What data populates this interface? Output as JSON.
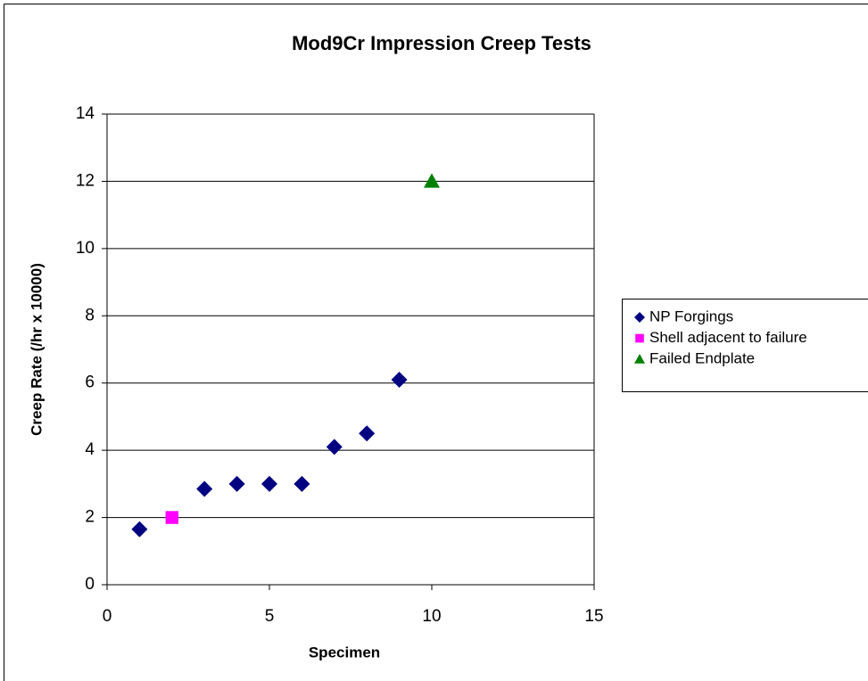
{
  "chart_data": {
    "type": "scatter",
    "title": "Mod9Cr Impression Creep Tests",
    "xlabel": "Specimen",
    "ylabel": "Creep Rate (/hr x 10000)",
    "xlim": [
      0,
      15
    ],
    "xticks": [
      0,
      5,
      10,
      15
    ],
    "ylim": [
      0,
      14
    ],
    "yticks": [
      0,
      2,
      4,
      6,
      8,
      10,
      12,
      14
    ],
    "grid": true,
    "legend": "right",
    "series": [
      {
        "name": "NP Forgings",
        "color": "#000080",
        "marker": "diamond",
        "x": [
          1,
          3,
          4,
          5,
          6,
          7,
          8,
          9
        ],
        "values": [
          1.65,
          2.85,
          3,
          3,
          3,
          4.1,
          4.5,
          6.1
        ]
      },
      {
        "name": "Shell adjacent to failure",
        "color": "#ff00ff",
        "marker": "square",
        "x": [
          2
        ],
        "values": [
          2
        ]
      },
      {
        "name": "Failed Endplate",
        "color": "#008000",
        "marker": "triangle",
        "x": [
          10
        ],
        "values": [
          12
        ]
      }
    ]
  }
}
